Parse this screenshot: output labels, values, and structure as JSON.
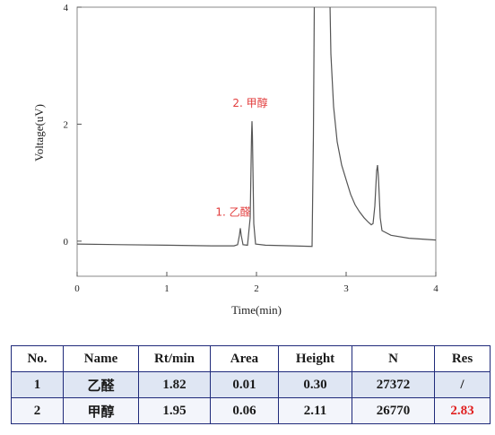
{
  "chart_data": {
    "type": "line",
    "title": "",
    "xlabel": "Time(min)",
    "ylabel": "Voltage(uV)",
    "xlim": [
      0,
      4
    ],
    "ylim": [
      -0.6,
      4
    ],
    "x_ticks": [
      0,
      1,
      2,
      3,
      4
    ],
    "y_ticks": [
      0,
      2,
      4
    ],
    "grid": false,
    "series": [
      {
        "color": "#555555",
        "points": [
          [
            0.0,
            -0.05
          ],
          [
            0.5,
            -0.06
          ],
          [
            1.0,
            -0.07
          ],
          [
            1.5,
            -0.08
          ],
          [
            1.75,
            -0.08
          ],
          [
            1.79,
            -0.06
          ],
          [
            1.81,
            0.1
          ],
          [
            1.82,
            0.22
          ],
          [
            1.83,
            0.1
          ],
          [
            1.85,
            -0.06
          ],
          [
            1.9,
            -0.07
          ],
          [
            1.93,
            0.4
          ],
          [
            1.945,
            1.8
          ],
          [
            1.95,
            2.05
          ],
          [
            1.955,
            1.8
          ],
          [
            1.97,
            0.3
          ],
          [
            1.99,
            -0.05
          ],
          [
            2.1,
            -0.07
          ],
          [
            2.4,
            -0.08
          ],
          [
            2.62,
            -0.09
          ],
          [
            2.635,
            1.8
          ],
          [
            2.645,
            4.05
          ],
          [
            2.82,
            4.05
          ],
          [
            2.83,
            3.2
          ],
          [
            2.86,
            2.3
          ],
          [
            2.9,
            1.7
          ],
          [
            2.95,
            1.3
          ],
          [
            3.0,
            1.05
          ],
          [
            3.05,
            0.8
          ],
          [
            3.1,
            0.62
          ],
          [
            3.15,
            0.5
          ],
          [
            3.2,
            0.4
          ],
          [
            3.25,
            0.32
          ],
          [
            3.28,
            0.28
          ],
          [
            3.3,
            0.3
          ],
          [
            3.32,
            0.6
          ],
          [
            3.34,
            1.2
          ],
          [
            3.35,
            1.3
          ],
          [
            3.36,
            1.1
          ],
          [
            3.38,
            0.4
          ],
          [
            3.4,
            0.18
          ],
          [
            3.5,
            0.1
          ],
          [
            3.7,
            0.05
          ],
          [
            4.0,
            0.02
          ]
        ]
      }
    ],
    "annotations": [
      {
        "text": "1. 乙醛",
        "x": 1.82,
        "y": 0.22
      },
      {
        "text": "2. 甲醇",
        "x": 1.95,
        "y": 2.05
      }
    ]
  },
  "table": {
    "headers": [
      "No.",
      "Name",
      "Rt/min",
      "Area",
      "Height",
      "N",
      "Res"
    ],
    "rows": [
      [
        "1",
        "乙醛",
        "1.82",
        "0.01",
        "0.30",
        "27372",
        "/"
      ],
      [
        "2",
        "甲醇",
        "1.95",
        "0.06",
        "2.11",
        "26770",
        "2.83"
      ]
    ]
  },
  "colors": {
    "highlight": "#e01e1e",
    "table_border": "#1f2a7a",
    "row_band_1": "#dfe6f3",
    "row_band_2": "#f3f5fb"
  }
}
